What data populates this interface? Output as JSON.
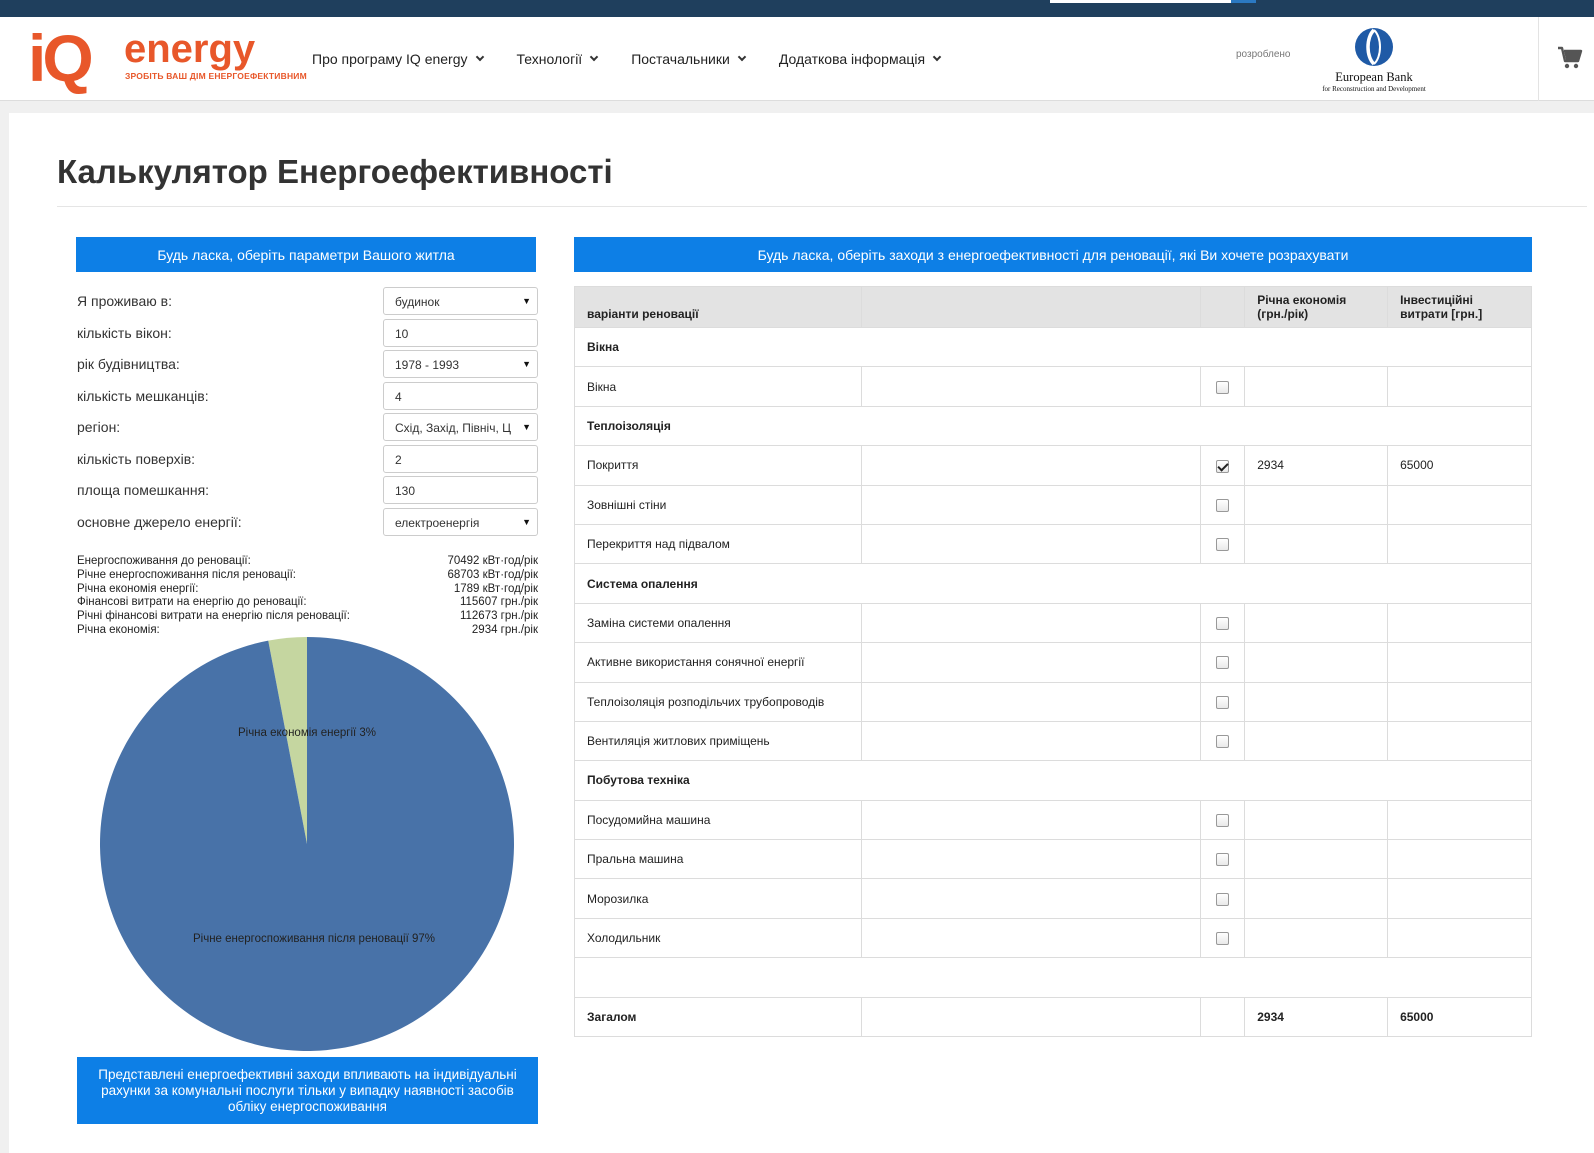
{
  "header": {
    "logo": {
      "brand_iq": "iQ",
      "brand_energy": "energy",
      "slogan": "ЗРОБІТЬ ВАШ ДІМ ЕНЕРГОЕФЕКТИВНИМ"
    },
    "nav": [
      {
        "label": "Про програму IQ energy"
      },
      {
        "label": "Технології"
      },
      {
        "label": "Постачальники"
      },
      {
        "label": "Додаткова інформація"
      }
    ],
    "developed_by_label": "розроблено",
    "partner": {
      "name": "European Bank",
      "subtitle": "for Reconstruction and Development"
    },
    "cart_icon": "cart-icon"
  },
  "page": {
    "title": "Калькулятор Енергоефективності",
    "left_header": "Будь ласка, оберіть параметри Вашого житла",
    "right_header": "Будь ласка, оберіть заходи з енергоефективності для реновації, які Ви хочете розрахувати"
  },
  "form": [
    {
      "label": "Я проживаю в:",
      "type": "select",
      "value": "будинок"
    },
    {
      "label": "кількість вікон:",
      "type": "input",
      "value": "10"
    },
    {
      "label": "рік будівництва:",
      "type": "select",
      "value": "1978 - 1993"
    },
    {
      "label": "кількість мешканців:",
      "type": "input",
      "value": "4"
    },
    {
      "label": "регіон:",
      "type": "select",
      "value": "Схід, Захід, Північ, Ц"
    },
    {
      "label": "кількість поверхів:",
      "type": "input",
      "value": "2"
    },
    {
      "label": "площа помешкання:",
      "type": "input",
      "value": "130"
    },
    {
      "label": "основне джерело енергії:",
      "type": "select",
      "value": "електроенергія"
    }
  ],
  "stats": [
    {
      "label": "Енергоспоживання до реновації:",
      "value": "70492 кВт·год/рік"
    },
    {
      "label": "Річне енергоспоживання після реновації:",
      "value": "68703 кВт·год/рік"
    },
    {
      "label": "Річна економія енергії:",
      "value": "1789 кВт·год/рік"
    },
    {
      "label": "Фінансові витрати на енергію до реновації:",
      "value": "115607 грн./рік"
    },
    {
      "label": "Річні фінансові витрати на енергію після реновації:",
      "value": "112673 грн./рік"
    },
    {
      "label": "Річна економія:",
      "value": "2934 грн./рік"
    }
  ],
  "chart_data": {
    "type": "pie",
    "slices": [
      {
        "label": "Річна економія енергії 3%",
        "value": 3,
        "color": "#c5d6a0"
      },
      {
        "label": "Річне енергоспоживання після реновації 97%",
        "value": 97,
        "color": "#4872a8"
      }
    ]
  },
  "note": "Представлені енергоефективні заходи впливають на індивідуальні рахунки за комунальні послуги тільки у випадку наявності засобів обліку енергоспоживання",
  "table": {
    "headers": {
      "option": "варіанти реновації",
      "savings": "Річна економія (грн./рік)",
      "investment": "Інвестиційні витрати [грн.]"
    },
    "rows": [
      {
        "kind": "group",
        "label": "Вікна"
      },
      {
        "kind": "item",
        "label": "Вікна",
        "checked": false,
        "savings": "",
        "investment": ""
      },
      {
        "kind": "group",
        "label": "Теплоізоляція"
      },
      {
        "kind": "item",
        "label": "Покриття",
        "checked": true,
        "savings": "2934",
        "investment": "65000"
      },
      {
        "kind": "item",
        "label": "Зовнішні стіни",
        "checked": false,
        "savings": "",
        "investment": ""
      },
      {
        "kind": "item",
        "label": "Перекриття над підвалом",
        "checked": false,
        "savings": "",
        "investment": ""
      },
      {
        "kind": "group",
        "label": "Система опалення"
      },
      {
        "kind": "item",
        "label": "Заміна системи опалення",
        "checked": false,
        "savings": "",
        "investment": ""
      },
      {
        "kind": "item",
        "label": "Активне використання сонячної енергії",
        "checked": false,
        "savings": "",
        "investment": ""
      },
      {
        "kind": "item",
        "label": "Теплоізоляція розподільчих трубопроводів",
        "checked": false,
        "savings": "",
        "investment": ""
      },
      {
        "kind": "item",
        "label": "Вентиляція житлових приміщень",
        "checked": false,
        "savings": "",
        "investment": ""
      },
      {
        "kind": "group",
        "label": "Побутова техніка"
      },
      {
        "kind": "item",
        "label": "Посудомийна машина",
        "checked": false,
        "savings": "",
        "investment": ""
      },
      {
        "kind": "item",
        "label": "Пральна машина",
        "checked": false,
        "savings": "",
        "investment": ""
      },
      {
        "kind": "item",
        "label": "Морозилка",
        "checked": false,
        "savings": "",
        "investment": ""
      },
      {
        "kind": "item",
        "label": "Холодильник",
        "checked": false,
        "savings": "",
        "investment": ""
      },
      {
        "kind": "blank"
      },
      {
        "kind": "total",
        "label": "Загалом",
        "savings": "2934",
        "investment": "65000"
      }
    ]
  }
}
